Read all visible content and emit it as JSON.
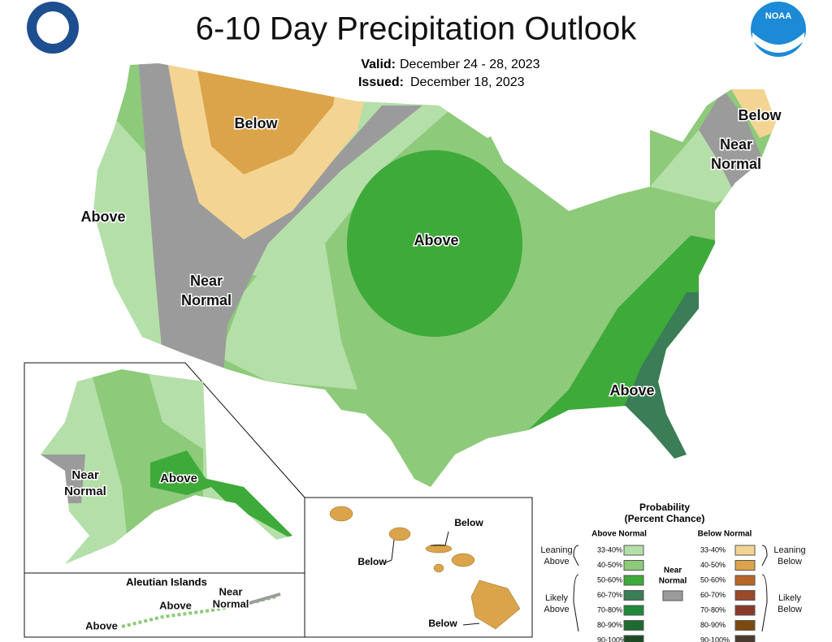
{
  "header": {
    "title": "6-10 Day Precipitation Outlook",
    "valid_label": "Valid:",
    "valid_dates": "December 24 - 28, 2023",
    "issued_label": "Issued:",
    "issued_date": "December 18, 2023",
    "logo": "NOAA"
  },
  "regions": [
    {
      "lines": [
        "Below"
      ]
    },
    {
      "lines": [
        "Above"
      ]
    },
    {
      "lines": [
        "Near",
        "Normal"
      ]
    },
    {
      "lines": [
        "Above"
      ]
    },
    {
      "lines": [
        "Above"
      ]
    },
    {
      "lines": [
        "Below"
      ]
    },
    {
      "lines": [
        "Near",
        "Normal"
      ]
    }
  ],
  "alaska": {
    "regions": [
      {
        "lines": [
          "Near",
          "Normal"
        ]
      },
      {
        "lines": [
          "Above"
        ]
      }
    ]
  },
  "aleutian": {
    "title": "Aleutian Islands",
    "labels": [
      {
        "lines": [
          "Above"
        ]
      },
      {
        "lines": [
          "Above"
        ]
      },
      {
        "lines": [
          "Near",
          "Normal"
        ]
      }
    ]
  },
  "hawaii": {
    "labels": [
      "Below",
      "Below",
      "Below"
    ]
  },
  "legend": {
    "title": [
      "Probability",
      "(Percent Chance)"
    ],
    "above_header": "Above Normal",
    "below_header": "Below Normal",
    "above_rows": [
      "33-40%",
      "40-50%",
      "50-60%",
      "60-70%",
      "70-80%",
      "80-90%",
      "90-100%"
    ],
    "below_rows": [
      "33-40%",
      "40-50%",
      "50-60%",
      "60-70%",
      "70-80%",
      "80-90%",
      "90-100%"
    ],
    "leaning_above": [
      "Leaning",
      "Above"
    ],
    "likely_above": [
      "Likely",
      "Above"
    ],
    "near_normal": [
      "Near",
      "Normal"
    ],
    "leaning_below": [
      "Leaning",
      "Below"
    ],
    "likely_below": [
      "Likely",
      "Below"
    ]
  }
}
